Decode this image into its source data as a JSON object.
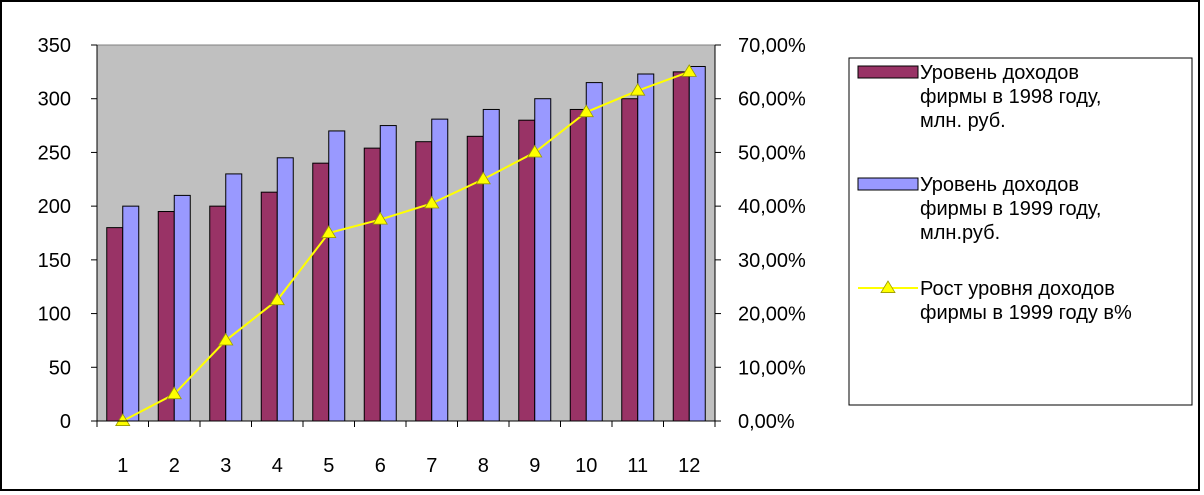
{
  "chart_data": {
    "type": "bar",
    "categories": [
      "1",
      "2",
      "3",
      "4",
      "5",
      "6",
      "7",
      "8",
      "9",
      "10",
      "11",
      "12"
    ],
    "series": [
      {
        "name": "Уровень доходов фирмы в 1998 году, млн. руб.",
        "legend_lines": [
          "Уровень доходов",
          "фирмы в 1998 году,",
          "млн. руб."
        ],
        "kind": "bar",
        "axis": "left",
        "color": "#993366",
        "values": [
          180,
          195,
          200,
          213,
          240,
          254,
          260,
          265,
          280,
          290,
          300,
          325
        ]
      },
      {
        "name": "Уровень доходов фирмы в 1999 году, млн.руб.",
        "legend_lines": [
          "Уровень доходов",
          "фирмы в 1999 году,",
          "млн.руб."
        ],
        "kind": "bar",
        "axis": "left",
        "color": "#9999ff",
        "values": [
          200,
          210,
          230,
          245,
          270,
          275,
          281,
          290,
          300,
          315,
          323,
          330
        ]
      },
      {
        "name": "Рост уровня доходов фирмы в 1999 году в%",
        "legend_lines": [
          "Рост уровня доходов",
          "фирмы в 1999 году в%"
        ],
        "kind": "line",
        "axis": "right",
        "color": "#ffff00",
        "values": [
          0.0,
          5.0,
          15.0,
          22.5,
          35.0,
          37.5,
          40.5,
          45.0,
          50.0,
          57.5,
          61.5,
          65.0
        ]
      }
    ],
    "left_axis": {
      "ylim": [
        0,
        350
      ],
      "ticks": [
        0,
        50,
        100,
        150,
        200,
        250,
        300,
        350
      ],
      "tick_labels": [
        "0",
        "50",
        "100",
        "150",
        "200",
        "250",
        "300",
        "350"
      ]
    },
    "right_axis": {
      "ylim": [
        0,
        70
      ],
      "ticks": [
        0,
        10,
        20,
        30,
        40,
        50,
        60,
        70
      ],
      "tick_labels": [
        "0,00%",
        "10,00%",
        "20,00%",
        "30,00%",
        "40,00%",
        "50,00%",
        "60,00%",
        "70,00%"
      ]
    },
    "plot_background": "#c0c0c0",
    "grid": false,
    "legend_position": "right"
  }
}
